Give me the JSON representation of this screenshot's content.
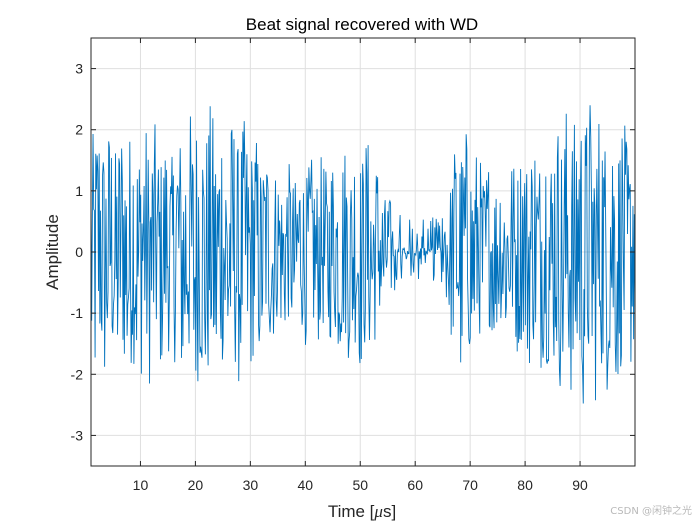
{
  "chart_data": {
    "type": "line",
    "title": "Beat signal recovered with WD",
    "xlabel": "Time [",
    "xlabel_symbol": "μ",
    "xlabel_suffix": "s]",
    "ylabel": "Amplitude",
    "xlim": [
      1,
      100
    ],
    "ylim": [
      -3.5,
      3.5
    ],
    "xticks": [
      10,
      20,
      30,
      40,
      50,
      60,
      70,
      80,
      90
    ],
    "xtick_labels": [
      "10",
      "20",
      "30",
      "40",
      "50",
      "60",
      "70",
      "80",
      "90"
    ],
    "yticks": [
      -3,
      -2,
      -1,
      0,
      1,
      2,
      3
    ],
    "ytick_labels": [
      "-3",
      "-2",
      "-1",
      "0",
      "1",
      "2",
      "3"
    ],
    "grid": true,
    "series": [
      {
        "name": "Beat signal",
        "color": "#0072BD",
        "samples": 800,
        "envelope_x": [
          1,
          5,
          10,
          15,
          20,
          25,
          30,
          35,
          40,
          45,
          50,
          52,
          55,
          58,
          62,
          65,
          68,
          72,
          76,
          80,
          85,
          90,
          95,
          100
        ],
        "envelope_amp": [
          2.1,
          1.8,
          2.0,
          1.6,
          2.2,
          2.0,
          1.8,
          1.2,
          1.3,
          1.4,
          1.7,
          1.6,
          0.8,
          0.5,
          0.45,
          0.6,
          1.9,
          1.4,
          1.2,
          1.6,
          1.9,
          2.3,
          2.0,
          1.8
        ]
      }
    ]
  },
  "watermark": "CSDN @闲钟之光"
}
